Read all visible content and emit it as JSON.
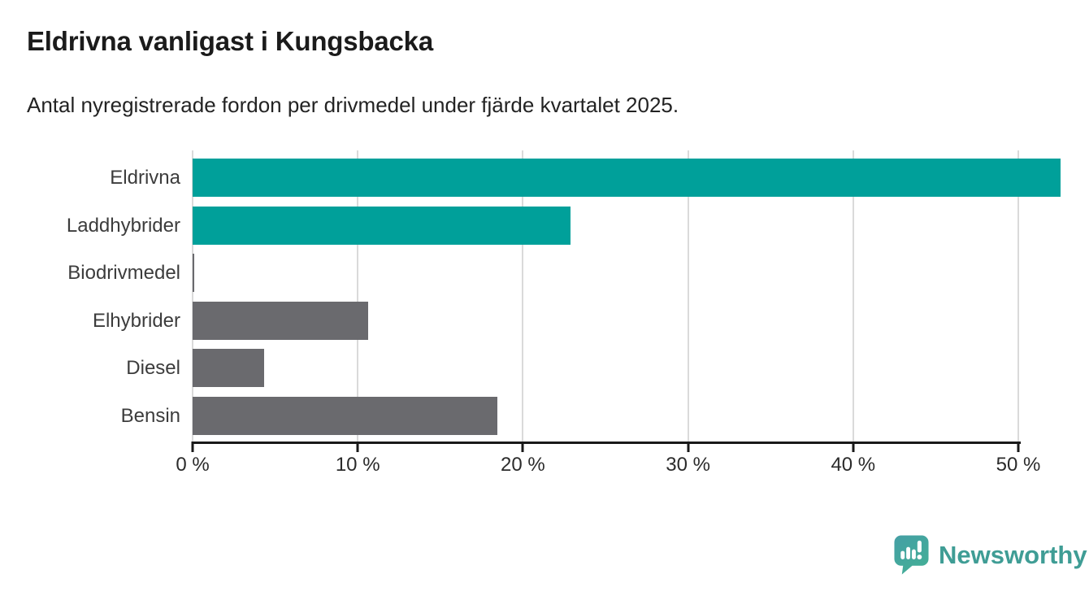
{
  "header": {
    "title": "Eldrivna vanligast i Kungsbacka",
    "subtitle": "Antal nyregistrerade fordon per drivmedel under fjärde kvartalet 2025."
  },
  "chart_data": {
    "type": "bar",
    "orientation": "horizontal",
    "title": "Eldrivna vanligast i Kungsbacka",
    "subtitle": "Antal nyregistrerade fordon per drivmedel under fjärde kvartalet 2025.",
    "categories": [
      "Eldrivna",
      "Laddhybrider",
      "Biodrivmedel",
      "Elhybrider",
      "Diesel",
      "Bensin"
    ],
    "values": [
      48.4,
      21.1,
      0.1,
      9.8,
      4.0,
      17.0
    ],
    "unit": "%",
    "xlim": [
      0,
      50
    ],
    "x_tick_values": [
      0,
      10,
      20,
      30,
      40,
      50
    ],
    "x_tick_labels": [
      "0 %",
      "10 %",
      "20 %",
      "30 %",
      "40 %",
      "50 %"
    ],
    "grid": true,
    "legend": "none",
    "bar_colors": [
      "#00a09a",
      "#00a09a",
      "#6a6a6e",
      "#6a6a6e",
      "#6a6a6e",
      "#6a6a6e"
    ]
  },
  "colors": {
    "highlight_teal": "#00a09a",
    "default_gray": "#6a6a6e",
    "gridline": "#dadada",
    "axis": "#191919",
    "brand_teal": "#3f9d95"
  },
  "footer": {
    "brand": "Newsworthy",
    "logo_icon": "newsworthy-speech-bubble-chart-icon"
  }
}
